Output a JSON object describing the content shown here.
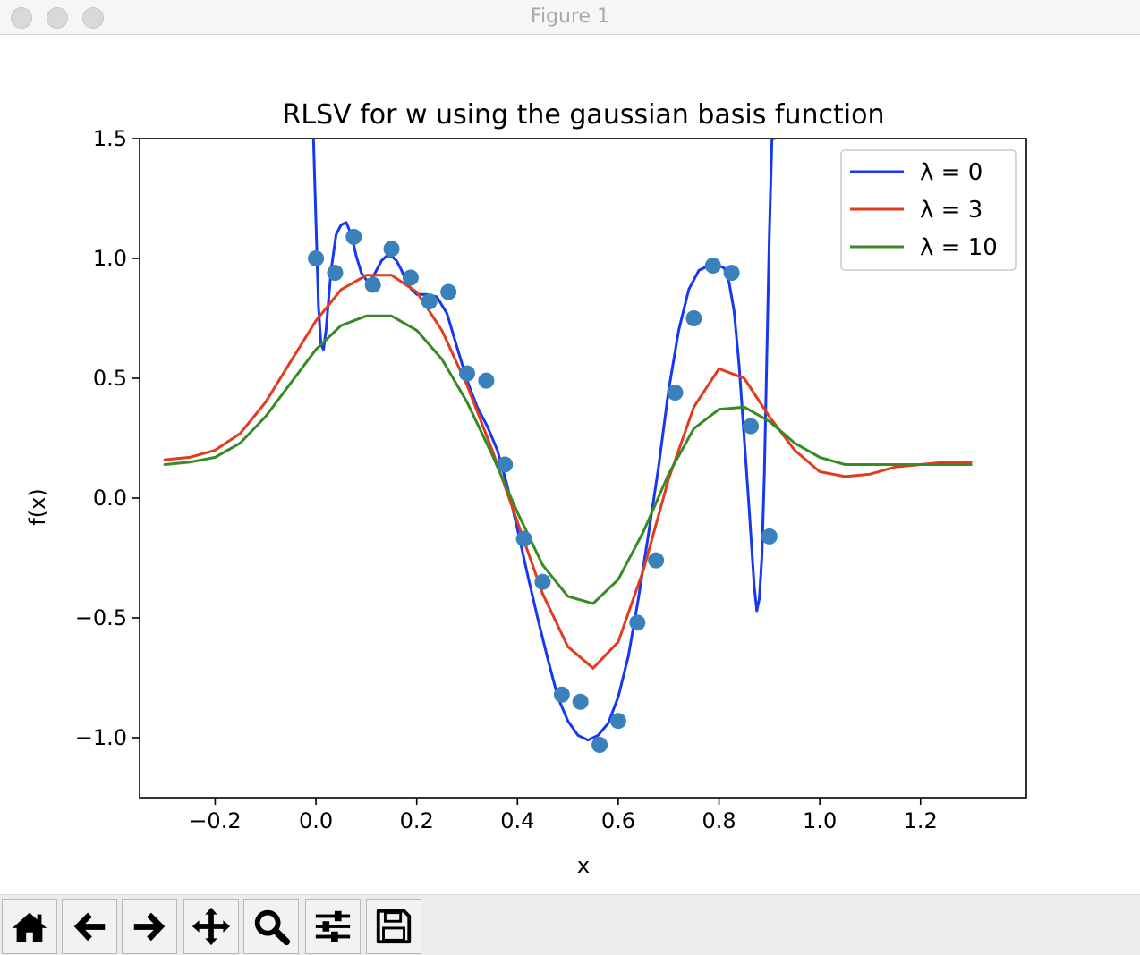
{
  "window": {
    "title": "Figure 1"
  },
  "toolbar": {
    "buttons": [
      {
        "name": "home-button",
        "icon": "home-icon"
      },
      {
        "name": "back-button",
        "icon": "arrow-left-icon"
      },
      {
        "name": "forward-button",
        "icon": "arrow-right-icon"
      },
      {
        "name": "pan-button",
        "icon": "move-icon"
      },
      {
        "name": "zoom-button",
        "icon": "magnifier-icon"
      },
      {
        "name": "configure-subplots-button",
        "icon": "sliders-icon"
      },
      {
        "name": "save-button",
        "icon": "floppy-disk-icon"
      }
    ]
  },
  "chart_data": {
    "type": "line",
    "title": "RLSV for w using the gaussian basis function",
    "xlabel": "x",
    "ylabel": "f(x)",
    "xlim": [
      -0.35,
      1.41
    ],
    "ylim": [
      -1.25,
      1.5
    ],
    "xticks": [
      -0.2,
      0.0,
      0.2,
      0.4,
      0.6,
      0.8,
      1.0,
      1.2
    ],
    "xtick_labels": [
      "−0.2",
      "0.0",
      "0.2",
      "0.4",
      "0.6",
      "0.8",
      "1.0",
      "1.2"
    ],
    "yticks": [
      -1.0,
      -0.5,
      0.0,
      0.5,
      1.0,
      1.5
    ],
    "ytick_labels": [
      "−1.0",
      "−0.5",
      "0.0",
      "0.5",
      "1.0",
      "1.5"
    ],
    "legend_position": "top-right",
    "grid": false,
    "scatter": {
      "color": "#3a81bb",
      "x": [
        0.0,
        0.038,
        0.075,
        0.113,
        0.15,
        0.188,
        0.225,
        0.263,
        0.3,
        0.338,
        0.375,
        0.413,
        0.45,
        0.488,
        0.525,
        0.563,
        0.6,
        0.638,
        0.675,
        0.713,
        0.75,
        0.788,
        0.825,
        0.863,
        0.9
      ],
      "y": [
        1.0,
        0.94,
        1.09,
        0.89,
        1.04,
        0.92,
        0.82,
        0.86,
        0.52,
        0.49,
        0.14,
        -0.17,
        -0.35,
        -0.82,
        -0.85,
        -1.03,
        -0.93,
        -0.52,
        -0.26,
        0.44,
        0.75,
        0.97,
        0.94,
        0.3,
        -0.16
      ]
    },
    "series": [
      {
        "name": "λ = 0",
        "color": "#1538f0",
        "x": [
          -0.005,
          0.0,
          0.005,
          0.01,
          0.015,
          0.02,
          0.03,
          0.04,
          0.05,
          0.06,
          0.07,
          0.08,
          0.09,
          0.1,
          0.11,
          0.12,
          0.13,
          0.14,
          0.15,
          0.16,
          0.17,
          0.18,
          0.19,
          0.2,
          0.21,
          0.22,
          0.24,
          0.26,
          0.28,
          0.3,
          0.32,
          0.34,
          0.36,
          0.38,
          0.4,
          0.42,
          0.44,
          0.46,
          0.48,
          0.5,
          0.52,
          0.54,
          0.56,
          0.58,
          0.6,
          0.62,
          0.64,
          0.66,
          0.68,
          0.7,
          0.72,
          0.74,
          0.76,
          0.78,
          0.8,
          0.81,
          0.82,
          0.83,
          0.84,
          0.85,
          0.86,
          0.87,
          0.875,
          0.88,
          0.885,
          0.89,
          0.895,
          0.9,
          0.905,
          0.91
        ],
        "y": [
          1.5,
          1.15,
          0.8,
          0.64,
          0.62,
          0.7,
          0.95,
          1.1,
          1.14,
          1.15,
          1.1,
          1.01,
          0.94,
          0.91,
          0.91,
          0.95,
          0.99,
          1.01,
          1.01,
          0.99,
          0.95,
          0.9,
          0.87,
          0.85,
          0.85,
          0.85,
          0.84,
          0.77,
          0.63,
          0.49,
          0.38,
          0.3,
          0.2,
          0.05,
          -0.13,
          -0.32,
          -0.5,
          -0.67,
          -0.83,
          -0.93,
          -0.99,
          -1.01,
          -0.99,
          -0.94,
          -0.83,
          -0.66,
          -0.42,
          -0.15,
          0.13,
          0.45,
          0.7,
          0.87,
          0.95,
          0.97,
          0.97,
          0.96,
          0.9,
          0.78,
          0.55,
          0.25,
          -0.05,
          -0.37,
          -0.47,
          -0.42,
          -0.25,
          0.1,
          0.6,
          1.1,
          1.5,
          1.5
        ]
      },
      {
        "name": "λ = 3",
        "color": "#e23b1e",
        "x": [
          -0.3,
          -0.25,
          -0.2,
          -0.15,
          -0.1,
          -0.05,
          0.0,
          0.05,
          0.1,
          0.15,
          0.2,
          0.25,
          0.3,
          0.35,
          0.4,
          0.45,
          0.5,
          0.55,
          0.6,
          0.65,
          0.7,
          0.75,
          0.8,
          0.85,
          0.9,
          0.95,
          1.0,
          1.05,
          1.1,
          1.15,
          1.2,
          1.25,
          1.3
        ],
        "y": [
          0.16,
          0.17,
          0.2,
          0.27,
          0.4,
          0.57,
          0.74,
          0.87,
          0.93,
          0.93,
          0.86,
          0.7,
          0.47,
          0.2,
          -0.1,
          -0.4,
          -0.62,
          -0.71,
          -0.6,
          -0.3,
          0.08,
          0.38,
          0.54,
          0.5,
          0.34,
          0.2,
          0.11,
          0.09,
          0.1,
          0.13,
          0.14,
          0.15,
          0.15
        ]
      },
      {
        "name": "λ = 10",
        "color": "#388a25",
        "x": [
          -0.3,
          -0.25,
          -0.2,
          -0.15,
          -0.1,
          -0.05,
          0.0,
          0.05,
          0.1,
          0.15,
          0.2,
          0.25,
          0.3,
          0.35,
          0.4,
          0.45,
          0.5,
          0.55,
          0.6,
          0.65,
          0.7,
          0.75,
          0.8,
          0.85,
          0.9,
          0.95,
          1.0,
          1.05,
          1.1,
          1.15,
          1.2,
          1.25,
          1.3
        ],
        "y": [
          0.14,
          0.15,
          0.17,
          0.23,
          0.34,
          0.48,
          0.62,
          0.72,
          0.76,
          0.76,
          0.7,
          0.58,
          0.4,
          0.18,
          -0.06,
          -0.28,
          -0.41,
          -0.44,
          -0.34,
          -0.14,
          0.1,
          0.29,
          0.37,
          0.38,
          0.32,
          0.23,
          0.17,
          0.14,
          0.14,
          0.14,
          0.14,
          0.14,
          0.14
        ]
      }
    ]
  }
}
